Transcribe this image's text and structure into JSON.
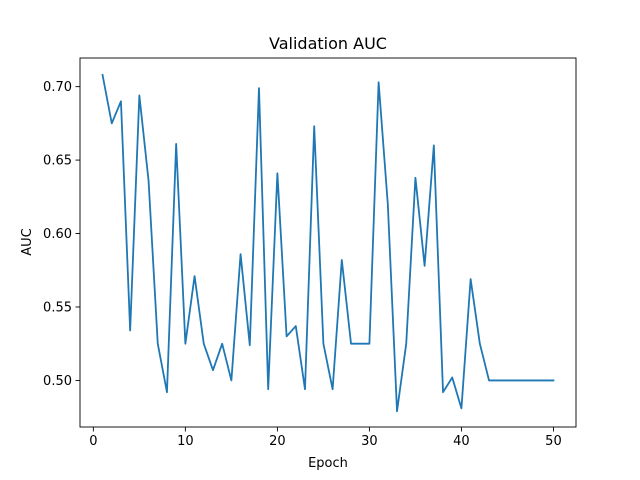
{
  "chart_data": {
    "type": "line",
    "title": "Validation AUC",
    "xlabel": "Epoch",
    "ylabel": "AUC",
    "xlim": [
      -1.45,
      52.45
    ],
    "ylim": [
      0.4683,
      0.7195
    ],
    "x_ticks": [
      0,
      10,
      20,
      30,
      40,
      50
    ],
    "y_ticks": [
      0.5,
      0.55,
      0.6,
      0.65,
      0.7
    ],
    "y_tick_labels": [
      "0.50",
      "0.55",
      "0.60",
      "0.65",
      "0.70"
    ],
    "grid": false,
    "line_color": "#1f77b4",
    "series": [
      {
        "x": [
          1,
          2,
          3,
          4,
          5,
          6,
          7,
          8,
          9,
          10,
          11,
          12,
          13,
          14,
          15,
          16,
          17,
          18,
          19,
          20,
          21,
          22,
          23,
          24,
          25,
          26,
          27,
          28,
          29,
          30,
          31,
          32,
          33,
          34,
          35,
          36,
          37,
          38,
          39,
          40,
          41,
          42,
          43,
          44,
          45,
          46,
          47,
          48,
          49,
          50
        ],
        "values": [
          0.708,
          0.675,
          0.69,
          0.534,
          0.694,
          0.636,
          0.525,
          0.492,
          0.661,
          0.525,
          0.571,
          0.525,
          0.507,
          0.525,
          0.5,
          0.586,
          0.524,
          0.699,
          0.494,
          0.641,
          0.53,
          0.537,
          0.494,
          0.673,
          0.525,
          0.494,
          0.582,
          0.525,
          0.525,
          0.525,
          0.703,
          0.62,
          0.479,
          0.525,
          0.638,
          0.578,
          0.66,
          0.492,
          0.502,
          0.481,
          0.569,
          0.525,
          0.5,
          0.5,
          0.5,
          0.5,
          0.5,
          0.5,
          0.5,
          0.5
        ]
      }
    ]
  }
}
